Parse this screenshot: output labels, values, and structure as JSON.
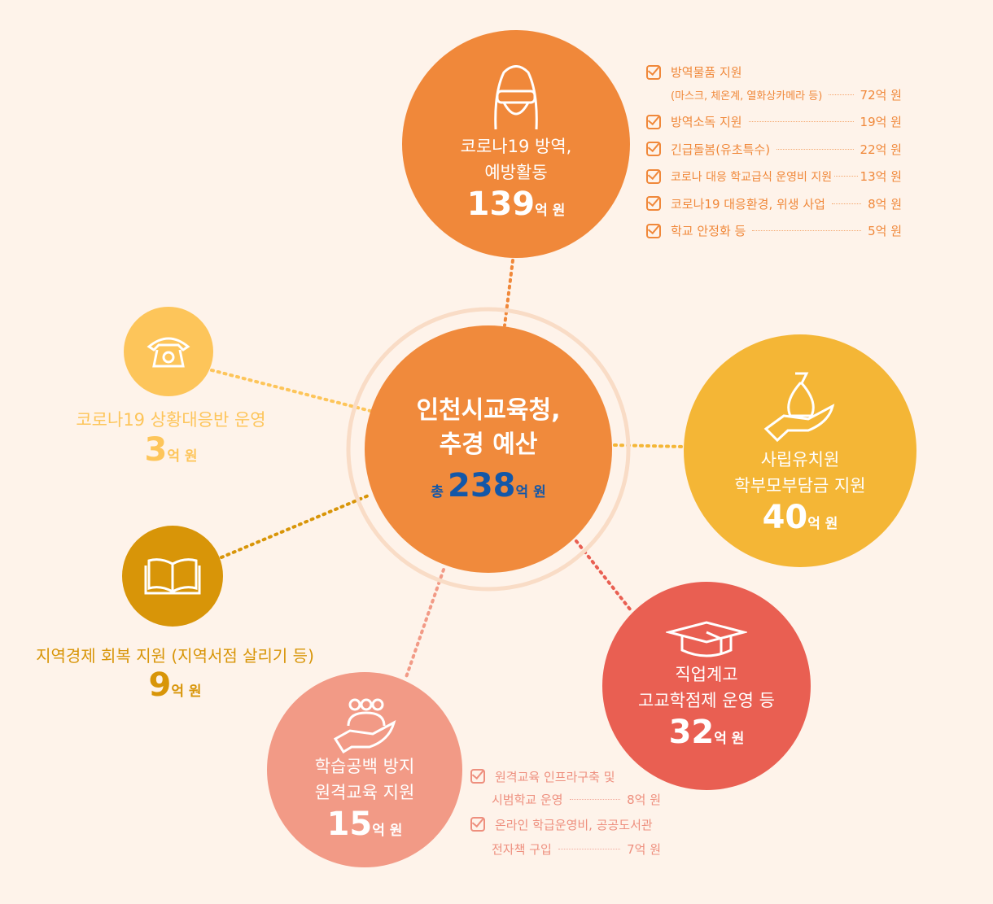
{
  "center": {
    "title1": "인천시교육청,",
    "title2": "추경 예산",
    "total_prefix": "총",
    "total": "238",
    "unit": "억 원"
  },
  "nodes": {
    "covid": {
      "label1": "코로나19 방역,",
      "label2": "예방활동",
      "amount": "139",
      "unit": "억 원",
      "color": "#F0883A",
      "icon": "mask-face-icon"
    },
    "hotline": {
      "label": "코로나19 상황대응반 운영",
      "amount": "3",
      "unit": "억 원",
      "color": "#FDC55A",
      "icon": "telephone-icon"
    },
    "kindergarten": {
      "label1": "사립유치원",
      "label2": "학부모부담금 지원",
      "amount": "40",
      "unit": "억 원",
      "color": "#F4B636",
      "icon": "money-bag-hand-icon"
    },
    "economy": {
      "label": "지역경제 회복 지원 (지역서점 살리기 등)",
      "amount": "9",
      "unit": "억 원",
      "color": "#D89508",
      "icon": "book-icon"
    },
    "remote": {
      "label1": "학습공백 방지",
      "label2": "원격교육 지원",
      "amount": "15",
      "unit": "억 원",
      "color": "#F29A86",
      "icon": "people-hand-icon"
    },
    "vocational": {
      "label1": "직업계고",
      "label2": "고교학점제  운영 등",
      "amount": "32",
      "unit": "억 원",
      "color": "#E95F52",
      "icon": "graduation-cap-icon"
    }
  },
  "covid_items": [
    {
      "label": "방역물품 지원",
      "sub": "(마스크, 체온계, 열화상카메라 등)",
      "value": "72억 원"
    },
    {
      "label": "방역소독 지원",
      "value": "19억 원"
    },
    {
      "label": "긴급돌봄(유초특수)",
      "value": "22억 원"
    },
    {
      "label": "코로나 대응 학교급식 운영비 지원",
      "value": "13억 원"
    },
    {
      "label": "코로나19 대응환경, 위생 사업",
      "value": "8억 원"
    },
    {
      "label": "학교 안정화 등",
      "value": "5억 원"
    }
  ],
  "remote_items": [
    {
      "label1": "원격교육 인프라구축 및",
      "label2": "시범학교 운영",
      "value": "8억 원"
    },
    {
      "label1": "온라인 학급운영비, 공공도서관",
      "label2": "전자책 구입",
      "value": "7억 원"
    }
  ]
}
